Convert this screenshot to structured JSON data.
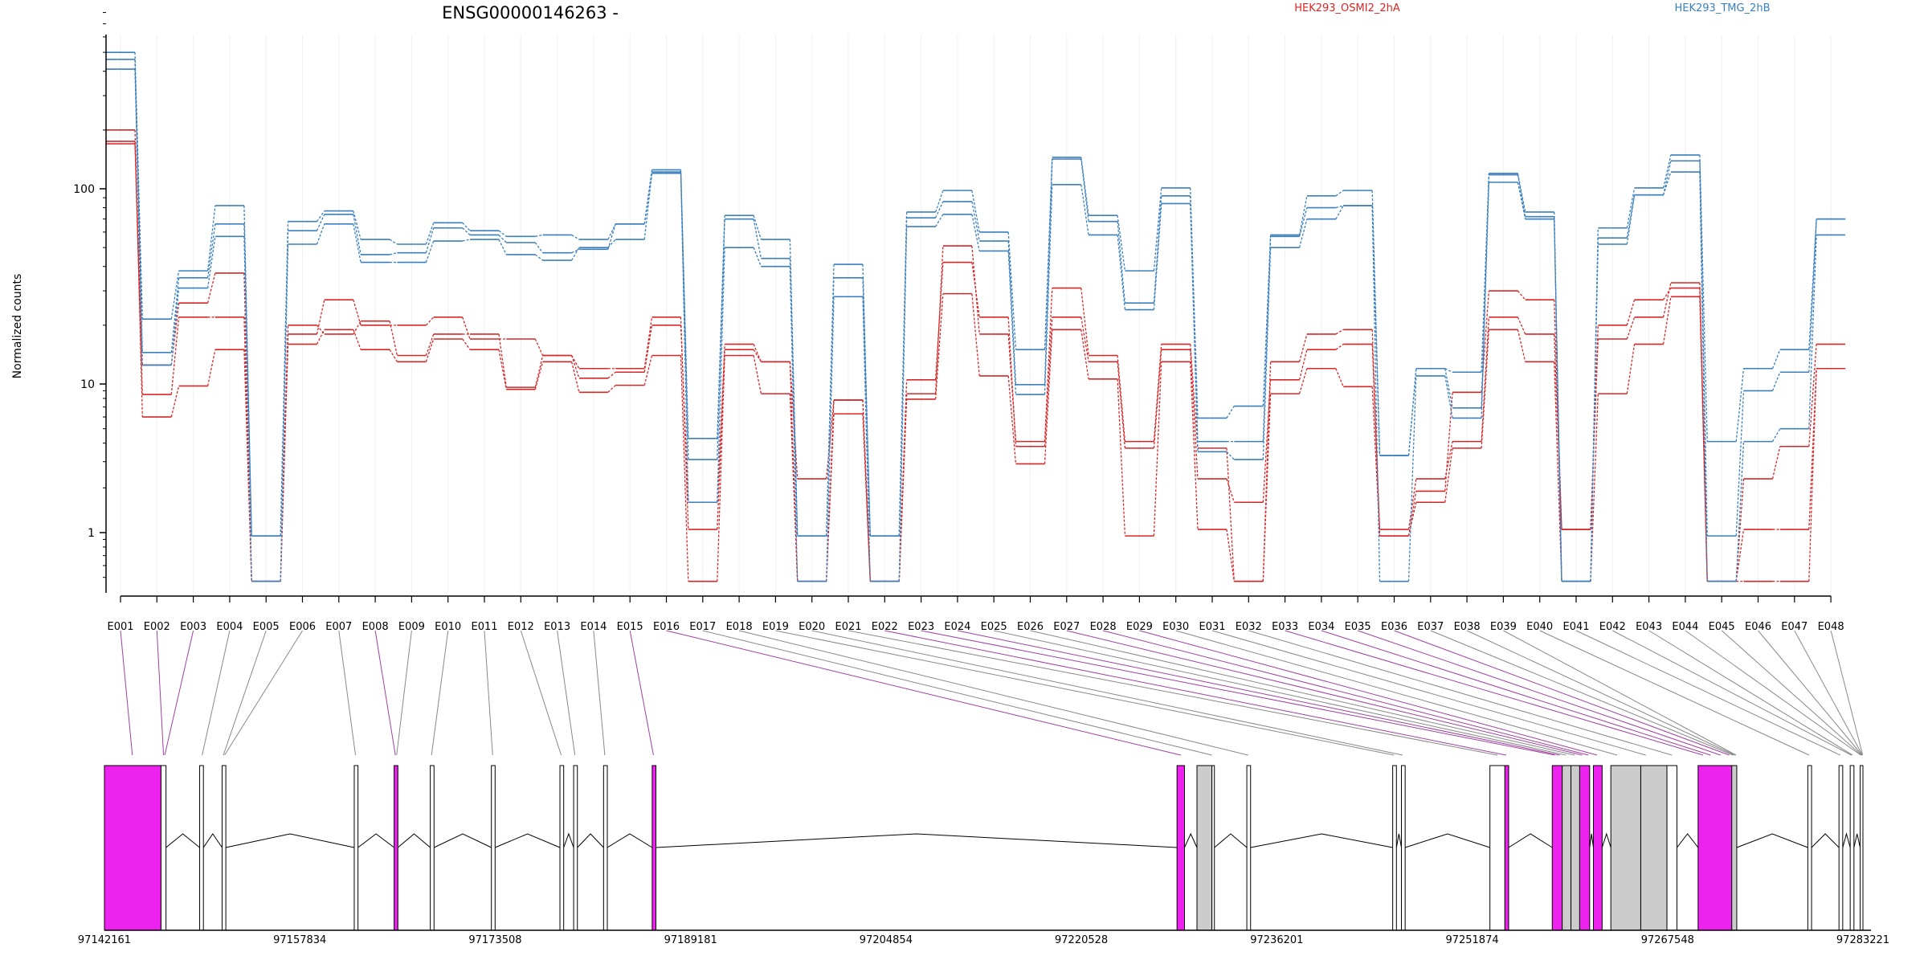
{
  "chart_data": {
    "type": "line",
    "title": "ENSG00000146263 -",
    "xlabel": "",
    "ylabel": "Normalized counts",
    "yscale": "log",
    "ylim": [
      0.45,
      800
    ],
    "yticks": [
      1,
      10,
      100
    ],
    "grid": false,
    "legend": [
      {
        "label": "HEK293_OSMI2_2hA",
        "color": "#d62728"
      },
      {
        "label": "HEK293_TMG_2hB",
        "color": "#3a7fbf"
      }
    ],
    "legend_placement": "top-right",
    "categories": [
      "E001",
      "E002",
      "E003",
      "E004",
      "E005",
      "E006",
      "E007",
      "E008",
      "E009",
      "E010",
      "E011",
      "E012",
      "E013",
      "E014",
      "E015",
      "E016",
      "E017",
      "E018",
      "E019",
      "E020",
      "E021",
      "E022",
      "E023",
      "E024",
      "E025",
      "E026",
      "E027",
      "E028",
      "E029",
      "E030",
      "E031",
      "E032",
      "E033",
      "E034",
      "E035",
      "E036",
      "E037",
      "E038",
      "E039",
      "E040",
      "E041",
      "E042",
      "E043",
      "E044",
      "E045",
      "E046",
      "E047",
      "E048"
    ],
    "series": [
      {
        "group": "HEK293_OSMI2_2hA",
        "color": "#d62728",
        "values": [
          200,
          6,
          9.7,
          15,
          0.47,
          16,
          19,
          15,
          13,
          17,
          15,
          9.2,
          13,
          8.8,
          9.8,
          14,
          0.47,
          14,
          8.6,
          0.47,
          6.3,
          0.47,
          7.9,
          29,
          11,
          2.9,
          19,
          10.6,
          0.95,
          13,
          1.05,
          0.47,
          8.6,
          12,
          9.6,
          0.95,
          1.6,
          3.7,
          19,
          13,
          0.47,
          8.6,
          16,
          28,
          0.47,
          0.47,
          0.47,
          12
        ]
      },
      {
        "group": "HEK293_OSMI2_2hA",
        "color": "#d62728",
        "values": [
          170,
          8.5,
          22,
          22,
          0.47,
          18,
          27,
          20,
          20,
          22,
          17,
          17,
          14,
          12,
          12,
          22,
          1.05,
          16,
          13,
          2.3,
          7.8,
          0.47,
          10.5,
          42,
          22,
          3.8,
          22,
          13,
          3.7,
          15,
          2.3,
          1.6,
          10.5,
          15,
          16,
          1.05,
          2.3,
          4.1,
          22,
          18,
          1.05,
          17,
          22,
          33,
          0.47,
          2.3,
          3.8,
          16
        ]
      },
      {
        "group": "HEK293_OSMI2_2hA",
        "color": "#d62728",
        "values": [
          175,
          12.5,
          26,
          37,
          0.47,
          20,
          18,
          21,
          14,
          18,
          18,
          9.5,
          14,
          10.7,
          11.5,
          20,
          1.6,
          15,
          13,
          0.47,
          7.8,
          0.47,
          8.6,
          51,
          18,
          4.1,
          31,
          14,
          4.1,
          16,
          3.7,
          0.47,
          13,
          18,
          19,
          0.95,
          1.9,
          8.8,
          30,
          27,
          1.05,
          20,
          27,
          31,
          0.47,
          1.05,
          1.05,
          12
        ]
      },
      {
        "group": "HEK293_TMG_2hB",
        "color": "#3a7fbf",
        "values": [
          410,
          12.5,
          31,
          57,
          0.47,
          52,
          66,
          42,
          42,
          54,
          55,
          46,
          43,
          50,
          55,
          120,
          1.6,
          50,
          40,
          0.47,
          28,
          0.47,
          64,
          74,
          48,
          8.5,
          105,
          58,
          24,
          84,
          3.5,
          3.1,
          50,
          70,
          82,
          0.47,
          11,
          5.9,
          108,
          70,
          0.47,
          52,
          93,
          122,
          0.47,
          4.1,
          5,
          58
        ]
      },
      {
        "group": "HEK293_TMG_2hB",
        "color": "#3a7fbf",
        "values": [
          460,
          14.5,
          35,
          66,
          0.95,
          61,
          74,
          46,
          47,
          63,
          58,
          53,
          47,
          49,
          66,
          122,
          3.1,
          70,
          44,
          0.95,
          35,
          0.95,
          71,
          86,
          54,
          9.9,
          142,
          68,
          26,
          92,
          4.1,
          4.1,
          57,
          80,
          82,
          3.3,
          12,
          6.9,
          118,
          72,
          0.47,
          56,
          93,
          139,
          0.95,
          9,
          11.5,
          70
        ]
      },
      {
        "group": "HEK293_TMG_2hB",
        "color": "#3a7fbf",
        "values": [
          500,
          21.5,
          38,
          82,
          0.95,
          68,
          77,
          55,
          52,
          67,
          61,
          57,
          58,
          55,
          66,
          125,
          4.3,
          73,
          55,
          0.95,
          41,
          0.95,
          76,
          98,
          60,
          15,
          145,
          73,
          38,
          101,
          5.9,
          7.1,
          58,
          92,
          98,
          3.3,
          12,
          11.5,
          120,
          76,
          0.47,
          63,
          101,
          149,
          4.1,
          12,
          15,
          70
        ]
      }
    ],
    "gene_model": {
      "coordinate_ticks": [
        97142161,
        97157834,
        97173508,
        97189181,
        97204854,
        97220528,
        97236201,
        97251874,
        97267548,
        97283221
      ],
      "exons": [
        {
          "start": 97142161,
          "end": 97146700,
          "fill": "#ee22ee"
        },
        {
          "start": 97146700,
          "end": 97147100,
          "fill": "#ffffff"
        },
        {
          "start": 97149800,
          "end": 97150100,
          "fill": "#ffffff"
        },
        {
          "start": 97151600,
          "end": 97151900,
          "fill": "#ffffff"
        },
        {
          "start": 97162200,
          "end": 97162500,
          "fill": "#ffffff"
        },
        {
          "start": 97165400,
          "end": 97165700,
          "fill": "#ee22ee"
        },
        {
          "start": 97168300,
          "end": 97168600,
          "fill": "#ffffff"
        },
        {
          "start": 97173200,
          "end": 97173500,
          "fill": "#ffffff"
        },
        {
          "start": 97178700,
          "end": 97179000,
          "fill": "#ffffff"
        },
        {
          "start": 97179800,
          "end": 97180100,
          "fill": "#ffffff"
        },
        {
          "start": 97182200,
          "end": 97182500,
          "fill": "#ffffff"
        },
        {
          "start": 97186100,
          "end": 97186400,
          "fill": "#ee22ee"
        },
        {
          "start": 97228200,
          "end": 97228800,
          "fill": "#ee22ee"
        },
        {
          "start": 97229800,
          "end": 97231000,
          "fill": "#cccccc"
        },
        {
          "start": 97231000,
          "end": 97231200,
          "fill": "#ffffff"
        },
        {
          "start": 97233800,
          "end": 97234100,
          "fill": "#ffffff"
        },
        {
          "start": 97245500,
          "end": 97245800,
          "fill": "#ffffff"
        },
        {
          "start": 97246200,
          "end": 97246500,
          "fill": "#ffffff"
        },
        {
          "start": 97253300,
          "end": 97254500,
          "fill": "#ffffff"
        },
        {
          "start": 97254500,
          "end": 97254800,
          "fill": "#ee22ee"
        },
        {
          "start": 97258300,
          "end": 97259100,
          "fill": "#ee22ee"
        },
        {
          "start": 97259100,
          "end": 97259800,
          "fill": "#cccccc"
        },
        {
          "start": 97259800,
          "end": 97260500,
          "fill": "#cccccc"
        },
        {
          "start": 97260500,
          "end": 97261300,
          "fill": "#ee22ee"
        },
        {
          "start": 97261600,
          "end": 97262300,
          "fill": "#ee22ee"
        },
        {
          "start": 97263000,
          "end": 97265400,
          "fill": "#cccccc"
        },
        {
          "start": 97265400,
          "end": 97267500,
          "fill": "#cccccc"
        },
        {
          "start": 97267500,
          "end": 97268300,
          "fill": "#ffffff"
        },
        {
          "start": 97270000,
          "end": 97272700,
          "fill": "#ee22ee"
        },
        {
          "start": 97272700,
          "end": 97273100,
          "fill": "#cccccc"
        },
        {
          "start": 97278800,
          "end": 97279100,
          "fill": "#ffffff"
        },
        {
          "start": 97281300,
          "end": 97281600,
          "fill": "#ffffff"
        },
        {
          "start": 97282200,
          "end": 97282500,
          "fill": "#ffffff"
        },
        {
          "start": 97283000,
          "end": 97283221,
          "fill": "#ffffff"
        }
      ],
      "connectors": [
        {
          "exon": "E001",
          "pos": 97144400,
          "color": "#a040a0"
        },
        {
          "exon": "E002",
          "pos": 97146900,
          "color": "#a040a0"
        },
        {
          "exon": "E003",
          "pos": 97147000,
          "color": "#a040a0"
        },
        {
          "exon": "E004",
          "pos": 97150000,
          "color": "#888888"
        },
        {
          "exon": "E005",
          "pos": 97151700,
          "color": "#888888"
        },
        {
          "exon": "E006",
          "pos": 97151800,
          "color": "#888888"
        },
        {
          "exon": "E007",
          "pos": 97162300,
          "color": "#888888"
        },
        {
          "exon": "E008",
          "pos": 97165500,
          "color": "#a040a0"
        },
        {
          "exon": "E009",
          "pos": 97165600,
          "color": "#888888"
        },
        {
          "exon": "E010",
          "pos": 97168400,
          "color": "#888888"
        },
        {
          "exon": "E011",
          "pos": 97173300,
          "color": "#888888"
        },
        {
          "exon": "E012",
          "pos": 97178800,
          "color": "#888888"
        },
        {
          "exon": "E013",
          "pos": 97179900,
          "color": "#888888"
        },
        {
          "exon": "E014",
          "pos": 97182300,
          "color": "#888888"
        },
        {
          "exon": "E015",
          "pos": 97186200,
          "color": "#a040a0"
        },
        {
          "exon": "E016",
          "pos": 97228500,
          "color": "#a040a0"
        },
        {
          "exon": "E017",
          "pos": 97231000,
          "color": "#888888"
        },
        {
          "exon": "E018",
          "pos": 97233900,
          "color": "#888888"
        },
        {
          "exon": "E019",
          "pos": 97245600,
          "color": "#888888"
        },
        {
          "exon": "E020",
          "pos": 97246300,
          "color": "#888888"
        },
        {
          "exon": "E021",
          "pos": 97253900,
          "color": "#888888"
        },
        {
          "exon": "E022",
          "pos": 97254600,
          "color": "#a040a0"
        },
        {
          "exon": "E023",
          "pos": 97258500,
          "color": "#a040a0"
        },
        {
          "exon": "E024",
          "pos": 97258900,
          "color": "#a040a0"
        },
        {
          "exon": "E025",
          "pos": 97259400,
          "color": "#888888"
        },
        {
          "exon": "E026",
          "pos": 97260100,
          "color": "#888888"
        },
        {
          "exon": "E027",
          "pos": 97260700,
          "color": "#a040a0"
        },
        {
          "exon": "E028",
          "pos": 97261200,
          "color": "#a040a0"
        },
        {
          "exon": "E029",
          "pos": 97261900,
          "color": "#a040a0"
        },
        {
          "exon": "E030",
          "pos": 97263500,
          "color": "#888888"
        },
        {
          "exon": "E031",
          "pos": 97265800,
          "color": "#888888"
        },
        {
          "exon": "E032",
          "pos": 97267900,
          "color": "#888888"
        },
        {
          "exon": "E033",
          "pos": 97270400,
          "color": "#a040a0"
        },
        {
          "exon": "E034",
          "pos": 97271000,
          "color": "#a040a0"
        },
        {
          "exon": "E035",
          "pos": 97271800,
          "color": "#a040a0"
        },
        {
          "exon": "E036",
          "pos": 97272500,
          "color": "#a040a0"
        },
        {
          "exon": "E037",
          "pos": 97272800,
          "color": "#888888"
        },
        {
          "exon": "E038",
          "pos": 97272950,
          "color": "#888888"
        },
        {
          "exon": "E039",
          "pos": 97273050,
          "color": "#888888"
        },
        {
          "exon": "E040",
          "pos": 97278900,
          "color": "#888888"
        },
        {
          "exon": "E041",
          "pos": 97281400,
          "color": "#888888"
        },
        {
          "exon": "E042",
          "pos": 97282300,
          "color": "#888888"
        },
        {
          "exon": "E043",
          "pos": 97282400,
          "color": "#888888"
        },
        {
          "exon": "E044",
          "pos": 97283050,
          "color": "#888888"
        },
        {
          "exon": "E045",
          "pos": 97283100,
          "color": "#888888"
        },
        {
          "exon": "E046",
          "pos": 97283150,
          "color": "#888888"
        },
        {
          "exon": "E047",
          "pos": 97283180,
          "color": "#888888"
        },
        {
          "exon": "E048",
          "pos": 97283200,
          "color": "#888888"
        }
      ]
    }
  }
}
